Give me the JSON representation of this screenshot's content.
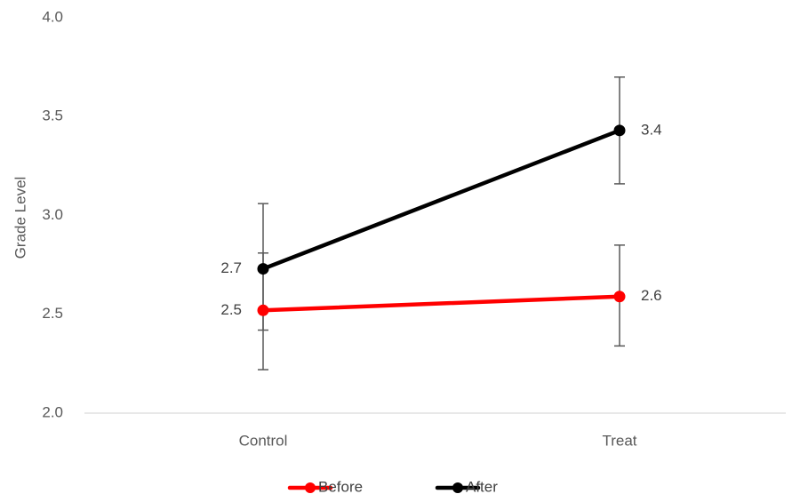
{
  "chart_data": {
    "type": "line",
    "categories": [
      "Control",
      "Treat"
    ],
    "ylabel": "Grade Level",
    "xlabel": "",
    "ylim": [
      2.0,
      4.0
    ],
    "yticks": [
      "2.0",
      "2.5",
      "3.0",
      "3.5",
      "4.0"
    ],
    "ytick_values": [
      2.0,
      2.5,
      3.0,
      3.5,
      4.0
    ],
    "gridlines": false,
    "legend_position": "bottom",
    "series": [
      {
        "name": "Before",
        "color": "#ff0000",
        "values": [
          2.52,
          2.59
        ],
        "labels": [
          "2.5",
          "2.6"
        ],
        "error_low": [
          2.22,
          2.34
        ],
        "error_high": [
          2.81,
          2.85
        ]
      },
      {
        "name": "After",
        "color": "#000000",
        "values": [
          2.73,
          3.43
        ],
        "labels": [
          "2.7",
          "3.4"
        ],
        "error_low": [
          2.42,
          3.16
        ],
        "error_high": [
          3.06,
          3.7
        ]
      }
    ]
  }
}
